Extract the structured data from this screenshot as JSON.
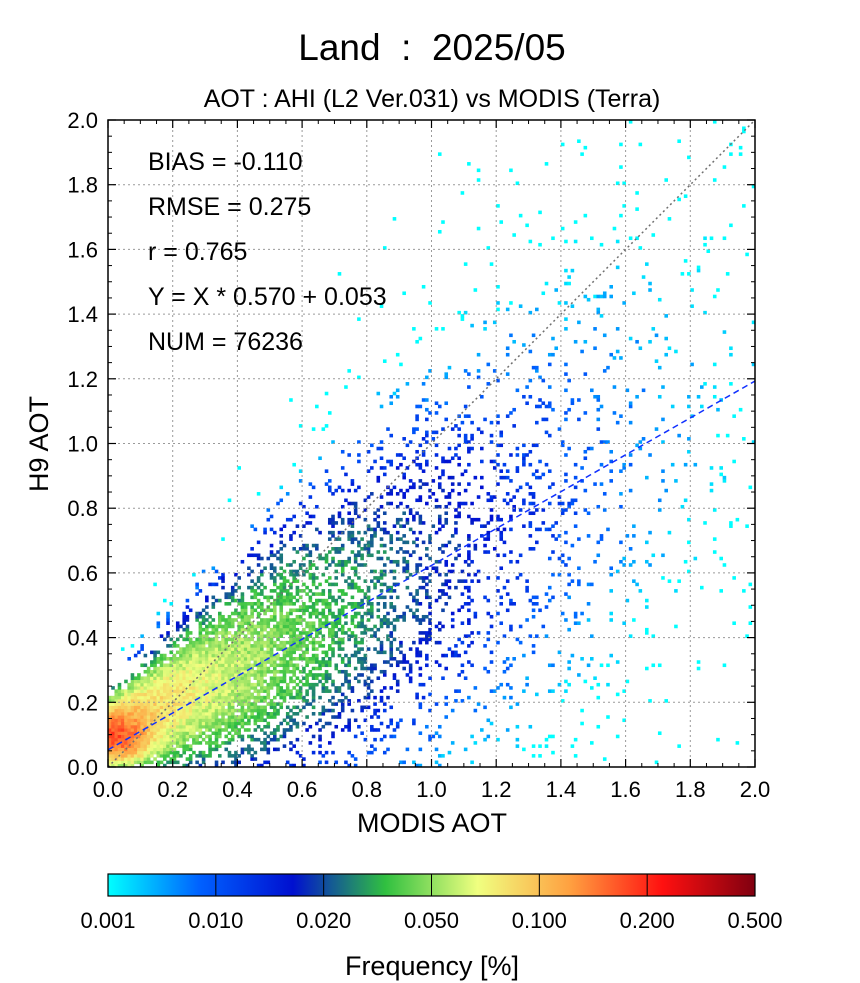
{
  "chart_data": {
    "type": "heatmap",
    "title": "Land  :  2025/05",
    "subtitle": "AOT : AHI (L2 Ver.031) vs MODIS (Terra)",
    "xlabel": "MODIS AOT",
    "ylabel": "H9 AOT",
    "xlim": [
      0.0,
      2.0
    ],
    "ylim": [
      0.0,
      2.0
    ],
    "x_ticks": [
      "0.0",
      "0.2",
      "0.4",
      "0.6",
      "0.8",
      "1.0",
      "1.2",
      "1.4",
      "1.6",
      "1.8",
      "2.0"
    ],
    "y_ticks": [
      "0.0",
      "0.2",
      "0.4",
      "0.6",
      "0.8",
      "1.0",
      "1.2",
      "1.4",
      "1.6",
      "1.8",
      "2.0"
    ],
    "grid": true,
    "stats": [
      "BIAS = -0.110",
      "RMSE = 0.275",
      "r = 0.765",
      "Y = X * 0.570 + 0.053",
      "NUM = 76236"
    ],
    "reference_lines": [
      {
        "label": "1:1",
        "slope": 1.0,
        "intercept": 0.0,
        "color": "#707070",
        "style": "dotted"
      },
      {
        "label": "regression",
        "slope": 0.57,
        "intercept": 0.053,
        "color": "#1030ff",
        "style": "dashed"
      }
    ],
    "density_model": {
      "core": {
        "x": 0.03,
        "y": 0.09,
        "peak_percent": 0.5
      },
      "regression_slope": 0.57,
      "regression_intercept": 0.053,
      "max_x": 2.0,
      "max_y": 2.0
    },
    "colorbar": {
      "label": "Frequency [%]",
      "tick_labels": [
        "0.001",
        "0.010",
        "0.020",
        "0.050",
        "0.100",
        "0.200",
        "0.500"
      ],
      "colors": [
        "#00ffff",
        "#0060ff",
        "#0010d0",
        "#30c040",
        "#f0ff80",
        "#ffa040",
        "#ff1010",
        "#800010"
      ]
    }
  }
}
